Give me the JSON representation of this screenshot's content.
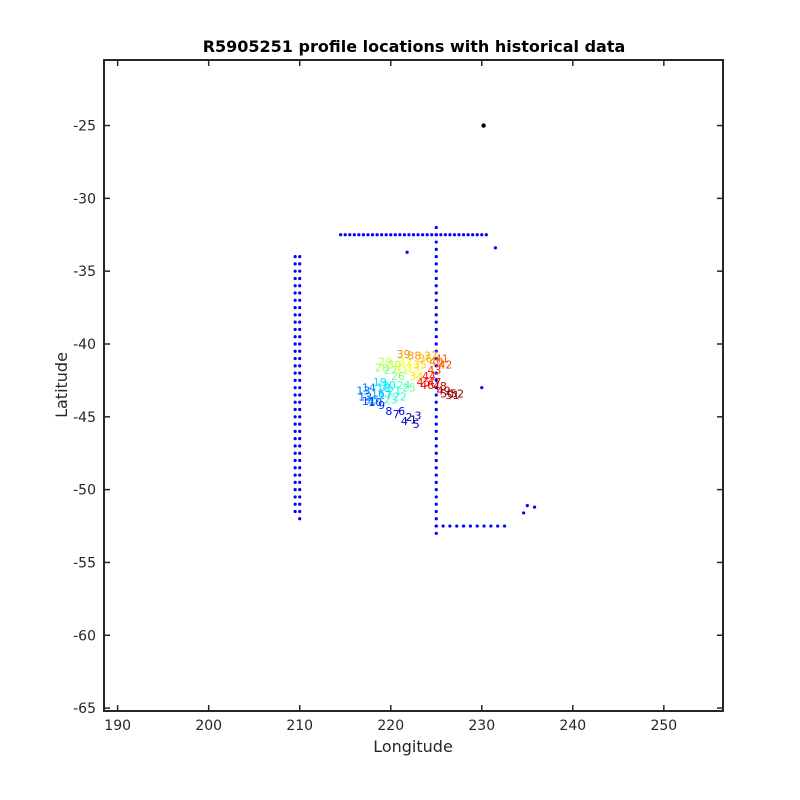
{
  "chart_data": {
    "type": "scatter",
    "title": "R5905251 profile locations with historical data",
    "xlabel": "Longitude",
    "ylabel": "Latitude",
    "xlim": [
      188.5,
      256.5
    ],
    "ylim": [
      -65.2,
      -20.5
    ],
    "xticks": [
      190,
      200,
      210,
      220,
      230,
      240,
      250
    ],
    "yticks": [
      -25,
      -30,
      -35,
      -40,
      -45,
      -50,
      -55,
      -60,
      -65
    ],
    "xtick_labels": [
      "190",
      "200",
      "210",
      "220",
      "230",
      "240",
      "250"
    ],
    "ytick_labels": [
      "-25",
      "-30",
      "-35",
      "-40",
      "-45",
      "-50",
      "-55",
      "-60",
      "-65"
    ],
    "grid": false,
    "colors": {
      "historical": "#0000ff",
      "isolated": "#000000",
      "profile_colormap": "jet"
    },
    "historical_tracks": [
      {
        "kind": "vertical",
        "x": 209.5,
        "y_from": -51.5,
        "y_to": -34.0,
        "step": 0.5
      },
      {
        "kind": "vertical",
        "x": 210.0,
        "y_from": -52.0,
        "y_to": -34.0,
        "step": 0.5
      },
      {
        "kind": "horizontal",
        "y": -32.5,
        "x_from": 214.5,
        "x_to": 230.5,
        "step": 0.5
      },
      {
        "kind": "vertical",
        "x": 225.0,
        "y_from": -53.0,
        "y_to": -32.5,
        "step": 0.5
      },
      {
        "kind": "horizontal",
        "y": -52.5,
        "x_from": 225.0,
        "x_to": 232.5,
        "step": 0.75
      }
    ],
    "historical_points": [
      {
        "x": 225.0,
        "y": -32.0
      },
      {
        "x": 231.5,
        "y": -33.4
      },
      {
        "x": 221.8,
        "y": -33.7
      },
      {
        "x": 230.0,
        "y": -43.0
      },
      {
        "x": 235.0,
        "y": -51.1
      },
      {
        "x": 235.8,
        "y": -51.2
      },
      {
        "x": 234.6,
        "y": -51.6
      }
    ],
    "isolated_points": [
      {
        "x": 230.2,
        "y": -25.0
      }
    ],
    "profile_points": [
      {
        "x": 222.5,
        "y": -45.2
      },
      {
        "x": 222.0,
        "y": -45.0
      },
      {
        "x": 223.0,
        "y": -44.9
      },
      {
        "x": 221.5,
        "y": -45.3
      },
      {
        "x": 222.8,
        "y": -45.5
      },
      {
        "x": 221.2,
        "y": -44.6
      },
      {
        "x": 220.6,
        "y": -44.8
      },
      {
        "x": 219.8,
        "y": -44.6
      },
      {
        "x": 219.0,
        "y": -44.2
      },
      {
        "x": 218.3,
        "y": -44.0
      },
      {
        "x": 217.6,
        "y": -43.9
      },
      {
        "x": 217.2,
        "y": -43.6
      },
      {
        "x": 217.0,
        "y": -43.2
      },
      {
        "x": 217.6,
        "y": -43.0
      },
      {
        "x": 218.0,
        "y": -43.8
      },
      {
        "x": 218.6,
        "y": -43.4
      },
      {
        "x": 219.4,
        "y": -43.5
      },
      {
        "x": 219.2,
        "y": -43.0
      },
      {
        "x": 218.8,
        "y": -42.6
      },
      {
        "x": 219.8,
        "y": -42.8
      },
      {
        "x": 220.4,
        "y": -43.2
      },
      {
        "x": 221.0,
        "y": -43.6
      },
      {
        "x": 220.0,
        "y": -43.8
      },
      {
        "x": 221.4,
        "y": -42.8
      },
      {
        "x": 222.0,
        "y": -43.0
      },
      {
        "x": 220.8,
        "y": -42.2
      },
      {
        "x": 220.0,
        "y": -41.8
      },
      {
        "x": 219.0,
        "y": -41.6
      },
      {
        "x": 219.4,
        "y": -41.2
      },
      {
        "x": 220.4,
        "y": -41.4
      },
      {
        "x": 221.2,
        "y": -41.8
      },
      {
        "x": 221.6,
        "y": -41.2
      },
      {
        "x": 222.4,
        "y": -41.6
      },
      {
        "x": 222.8,
        "y": -42.2
      },
      {
        "x": 223.2,
        "y": -41.4
      },
      {
        "x": 223.8,
        "y": -41.0
      },
      {
        "x": 224.4,
        "y": -40.8
      },
      {
        "x": 222.6,
        "y": -40.8
      },
      {
        "x": 221.4,
        "y": -40.7
      },
      {
        "x": 225.0,
        "y": -41.2
      },
      {
        "x": 225.6,
        "y": -41.0
      },
      {
        "x": 226.0,
        "y": -41.4
      },
      {
        "x": 224.8,
        "y": -41.8
      },
      {
        "x": 224.2,
        "y": -42.2
      },
      {
        "x": 223.6,
        "y": -42.6
      },
      {
        "x": 224.0,
        "y": -42.8
      },
      {
        "x": 224.8,
        "y": -42.6
      },
      {
        "x": 225.4,
        "y": -42.9
      },
      {
        "x": 225.8,
        "y": -43.2
      },
      {
        "x": 226.2,
        "y": -43.4
      },
      {
        "x": 226.8,
        "y": -43.5
      },
      {
        "x": 227.3,
        "y": -43.4
      }
    ]
  }
}
